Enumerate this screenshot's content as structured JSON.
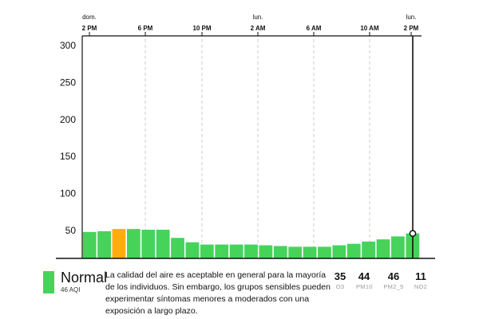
{
  "chart_data": {
    "type": "bar",
    "x_top_labels": [
      {
        "day": "dom.",
        "time": "2 PM"
      },
      {
        "day": "",
        "time": "6 PM"
      },
      {
        "day": "",
        "time": "10 PM"
      },
      {
        "day": "lun.",
        "time": "2 AM"
      },
      {
        "day": "",
        "time": "6 AM"
      },
      {
        "day": "",
        "time": "10 AM"
      },
      {
        "day": "lun.",
        "time": "2 PM"
      }
    ],
    "y_ticks": [
      50,
      100,
      150,
      200,
      250,
      300
    ],
    "ylim": [
      0,
      300
    ],
    "values": [
      48,
      49,
      52,
      52,
      51,
      51,
      40,
      34,
      31,
      31,
      31,
      31,
      30,
      29,
      28,
      28,
      28,
      30,
      32,
      35,
      38,
      42,
      46
    ],
    "bar_colors": [
      "#46d35a",
      "#46d35a",
      "#ffad0e",
      "#46d35a",
      "#46d35a",
      "#46d35a",
      "#46d35a",
      "#46d35a",
      "#46d35a",
      "#46d35a",
      "#46d35a",
      "#46d35a",
      "#46d35a",
      "#46d35a",
      "#46d35a",
      "#46d35a",
      "#46d35a",
      "#46d35a",
      "#46d35a",
      "#46d35a",
      "#46d35a",
      "#46d35a",
      "#46d35a"
    ],
    "highlighted_value": 46,
    "grid": "vertical dashed"
  },
  "summary": {
    "level": "Normal",
    "aqi": "46 AQI",
    "color": "#46d35a",
    "description": "La calidad del aire es aceptable en general para la mayoría de los individuos. Sin embargo, los grupos sensibles pueden experimentar síntomas menores a moderados con una exposición a largo plazo."
  },
  "pollutants": [
    {
      "value": "35",
      "label": "O3"
    },
    {
      "value": "44",
      "label": "PM10"
    },
    {
      "value": "46",
      "label": "PM2_5"
    },
    {
      "value": "11",
      "label": "NO2"
    }
  ]
}
